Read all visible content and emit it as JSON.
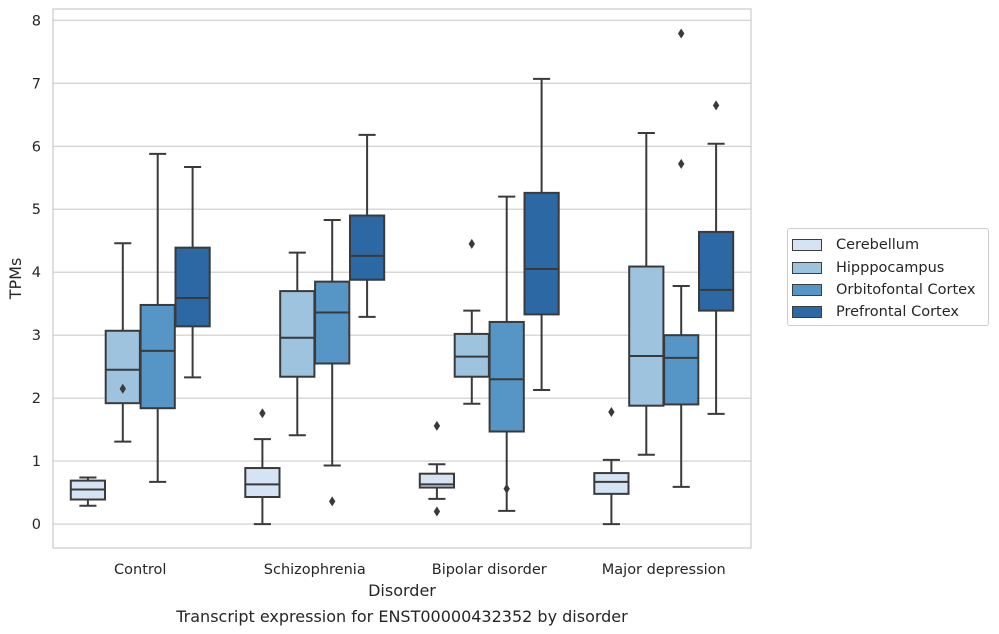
{
  "chart_data": {
    "type": "box",
    "ylabel": "TPMs",
    "xlabel": "Disorder",
    "caption": "Transcript expression for ENST00000432352 by disorder",
    "ylim": [
      -0.38,
      8.18
    ],
    "yticks": [
      0,
      1,
      2,
      3,
      4,
      5,
      6,
      7,
      8
    ],
    "grid": true,
    "legend_position": "right",
    "categories": [
      "Control",
      "Schizophrenia",
      "Bipolar disorder",
      "Major depression"
    ],
    "series": [
      {
        "name": "Cerebellum",
        "color": "#d4e4f4",
        "boxes": [
          {
            "whislo": 0.29,
            "q1": 0.39,
            "med": 0.55,
            "q3": 0.69,
            "whishi": 0.74,
            "fliers": []
          },
          {
            "whislo": 0.0,
            "q1": 0.43,
            "med": 0.63,
            "q3": 0.89,
            "whishi": 1.35,
            "fliers": [
              1.76
            ]
          },
          {
            "whislo": 0.4,
            "q1": 0.58,
            "med": 0.63,
            "q3": 0.8,
            "whishi": 0.95,
            "fliers": [
              1.56,
              0.2
            ]
          },
          {
            "whislo": 0.0,
            "q1": 0.48,
            "med": 0.67,
            "q3": 0.81,
            "whishi": 1.02,
            "fliers": [
              1.78
            ]
          }
        ]
      },
      {
        "name": "Hipppocampus",
        "color": "#9dc3de",
        "boxes": [
          {
            "whislo": 1.31,
            "q1": 1.92,
            "med": 2.45,
            "q3": 3.07,
            "whishi": 4.46,
            "fliers": [
              2.15
            ]
          },
          {
            "whislo": 1.41,
            "q1": 2.34,
            "med": 2.96,
            "q3": 3.7,
            "whishi": 4.31,
            "fliers": []
          },
          {
            "whislo": 1.91,
            "q1": 2.34,
            "med": 2.66,
            "q3": 3.02,
            "whishi": 3.39,
            "fliers": [
              4.45
            ]
          },
          {
            "whislo": 1.1,
            "q1": 1.88,
            "med": 2.67,
            "q3": 4.09,
            "whishi": 6.21,
            "fliers": []
          }
        ]
      },
      {
        "name": "Orbitofontal Cortex",
        "color": "#5596c6",
        "boxes": [
          {
            "whislo": 0.67,
            "q1": 1.84,
            "med": 2.75,
            "q3": 3.48,
            "whishi": 5.88,
            "fliers": []
          },
          {
            "whislo": 0.93,
            "q1": 2.55,
            "med": 3.36,
            "q3": 3.85,
            "whishi": 4.83,
            "fliers": [
              0.36
            ]
          },
          {
            "whislo": 0.21,
            "q1": 1.47,
            "med": 2.3,
            "q3": 3.21,
            "whishi": 5.2,
            "fliers": [
              0.56
            ]
          },
          {
            "whislo": 0.59,
            "q1": 1.9,
            "med": 2.64,
            "q3": 3.0,
            "whishi": 3.78,
            "fliers": [
              7.79,
              5.72
            ]
          }
        ]
      },
      {
        "name": "Prefrontal Cortex",
        "color": "#2b68a4",
        "boxes": [
          {
            "whislo": 2.33,
            "q1": 3.14,
            "med": 3.59,
            "q3": 4.39,
            "whishi": 5.67,
            "fliers": []
          },
          {
            "whislo": 3.29,
            "q1": 3.88,
            "med": 4.26,
            "q3": 4.9,
            "whishi": 6.18,
            "fliers": []
          },
          {
            "whislo": 2.13,
            "q1": 3.33,
            "med": 4.05,
            "q3": 5.26,
            "whishi": 7.07,
            "fliers": []
          },
          {
            "whislo": 1.75,
            "q1": 3.39,
            "med": 3.72,
            "q3": 4.64,
            "whishi": 6.04,
            "fliers": [
              6.65
            ]
          }
        ]
      }
    ]
  }
}
